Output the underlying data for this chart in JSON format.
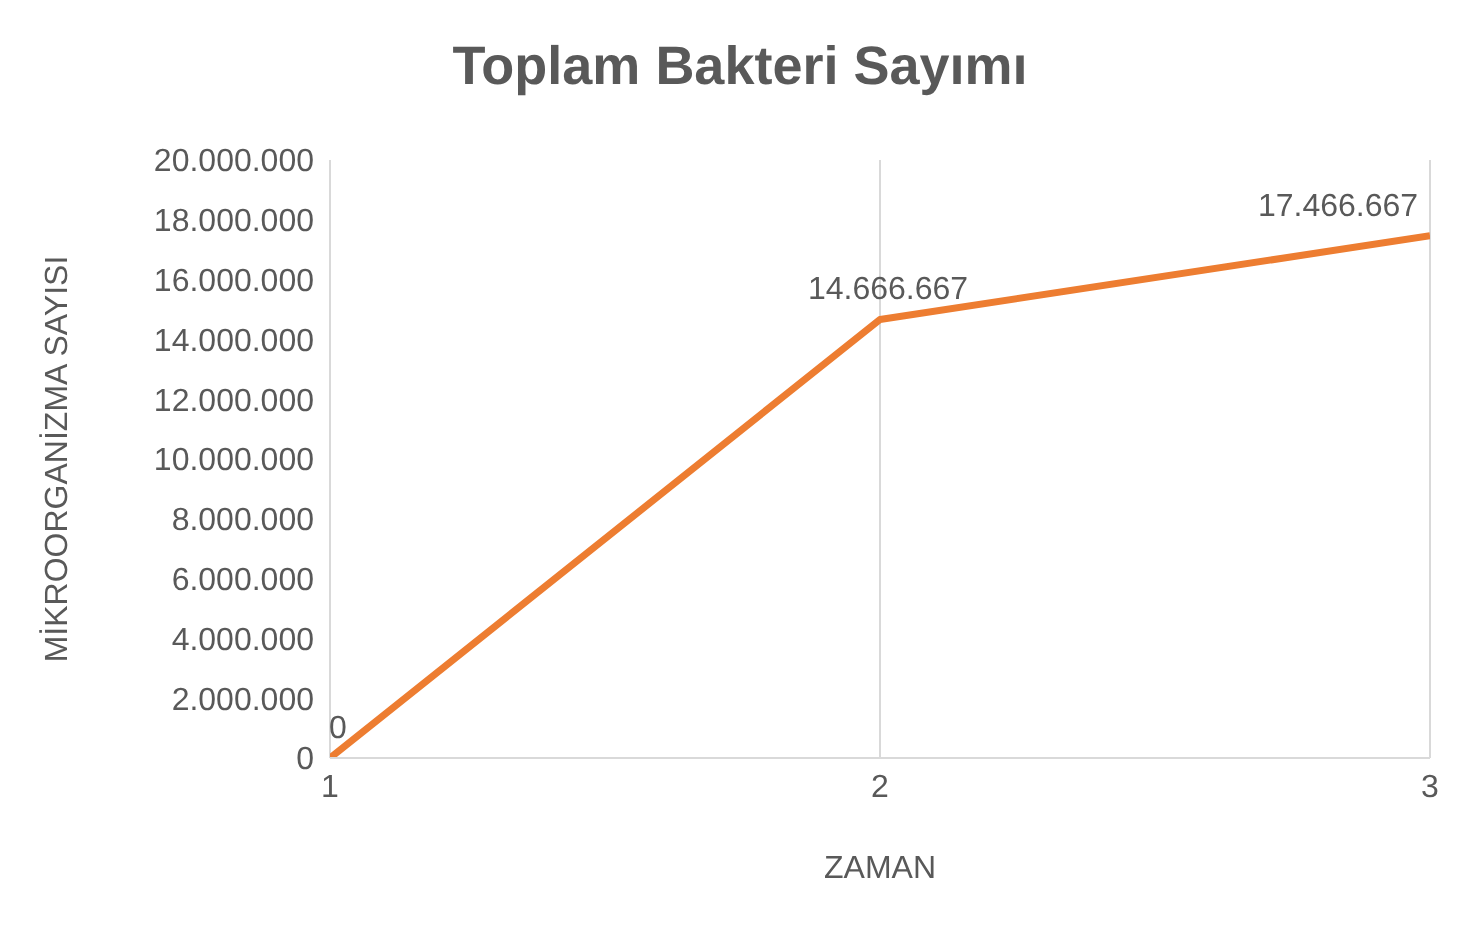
{
  "chart_data": {
    "type": "line",
    "title": "Toplam Bakteri Sayımı",
    "xlabel": "ZAMAN",
    "ylabel": "MİKROORGANİZMA SAYISI",
    "x": [
      1,
      2,
      3
    ],
    "series": [
      {
        "color": "#ed7d31",
        "values": [
          0,
          14666667,
          17466667
        ],
        "value_labels": [
          "0",
          "14.666.667",
          "17.466.667"
        ]
      }
    ],
    "xlim": [
      1,
      3
    ],
    "xticks": [
      1,
      2,
      3
    ],
    "ylim": [
      0,
      20000000
    ],
    "yticks": [
      {
        "value": 0,
        "label": "0"
      },
      {
        "value": 2000000,
        "label": "2.000.000"
      },
      {
        "value": 4000000,
        "label": "4.000.000"
      },
      {
        "value": 6000000,
        "label": "6.000.000"
      },
      {
        "value": 8000000,
        "label": "8.000.000"
      },
      {
        "value": 10000000,
        "label": "10.000.000"
      },
      {
        "value": 12000000,
        "label": "12.000.000"
      },
      {
        "value": 14000000,
        "label": "14.000.000"
      },
      {
        "value": 16000000,
        "label": "16.000.000"
      },
      {
        "value": 18000000,
        "label": "18.000.000"
      },
      {
        "value": 20000000,
        "label": "20.000.000"
      }
    ],
    "grid": "x",
    "legend": false,
    "marker": "none",
    "line_style": "solid"
  }
}
